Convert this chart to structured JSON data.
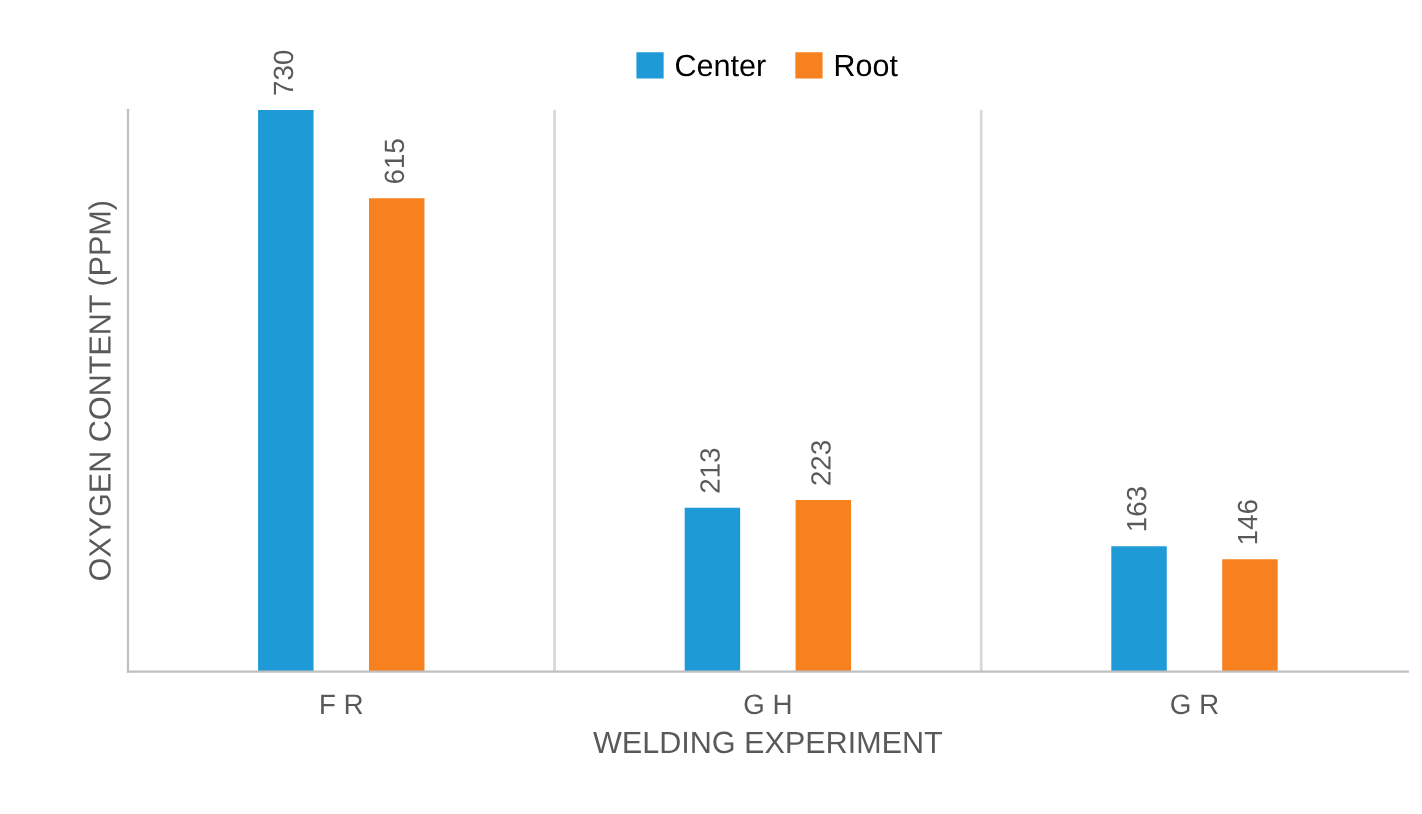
{
  "chart_data": {
    "type": "bar",
    "xlabel": "WELDING EXPERIMENT",
    "ylabel": "OXYGEN CONTENT (PPM)",
    "categories": [
      "F R",
      "G H",
      "G R"
    ],
    "series": [
      {
        "name": "Center",
        "color": "#1e9ad6",
        "values": [
          730,
          213,
          163
        ]
      },
      {
        "name": "Root",
        "color": "#f7801f",
        "values": [
          615,
          223,
          146
        ]
      }
    ],
    "data_labels": true,
    "legend": "top",
    "grid": "x",
    "tick_labels": "x"
  }
}
